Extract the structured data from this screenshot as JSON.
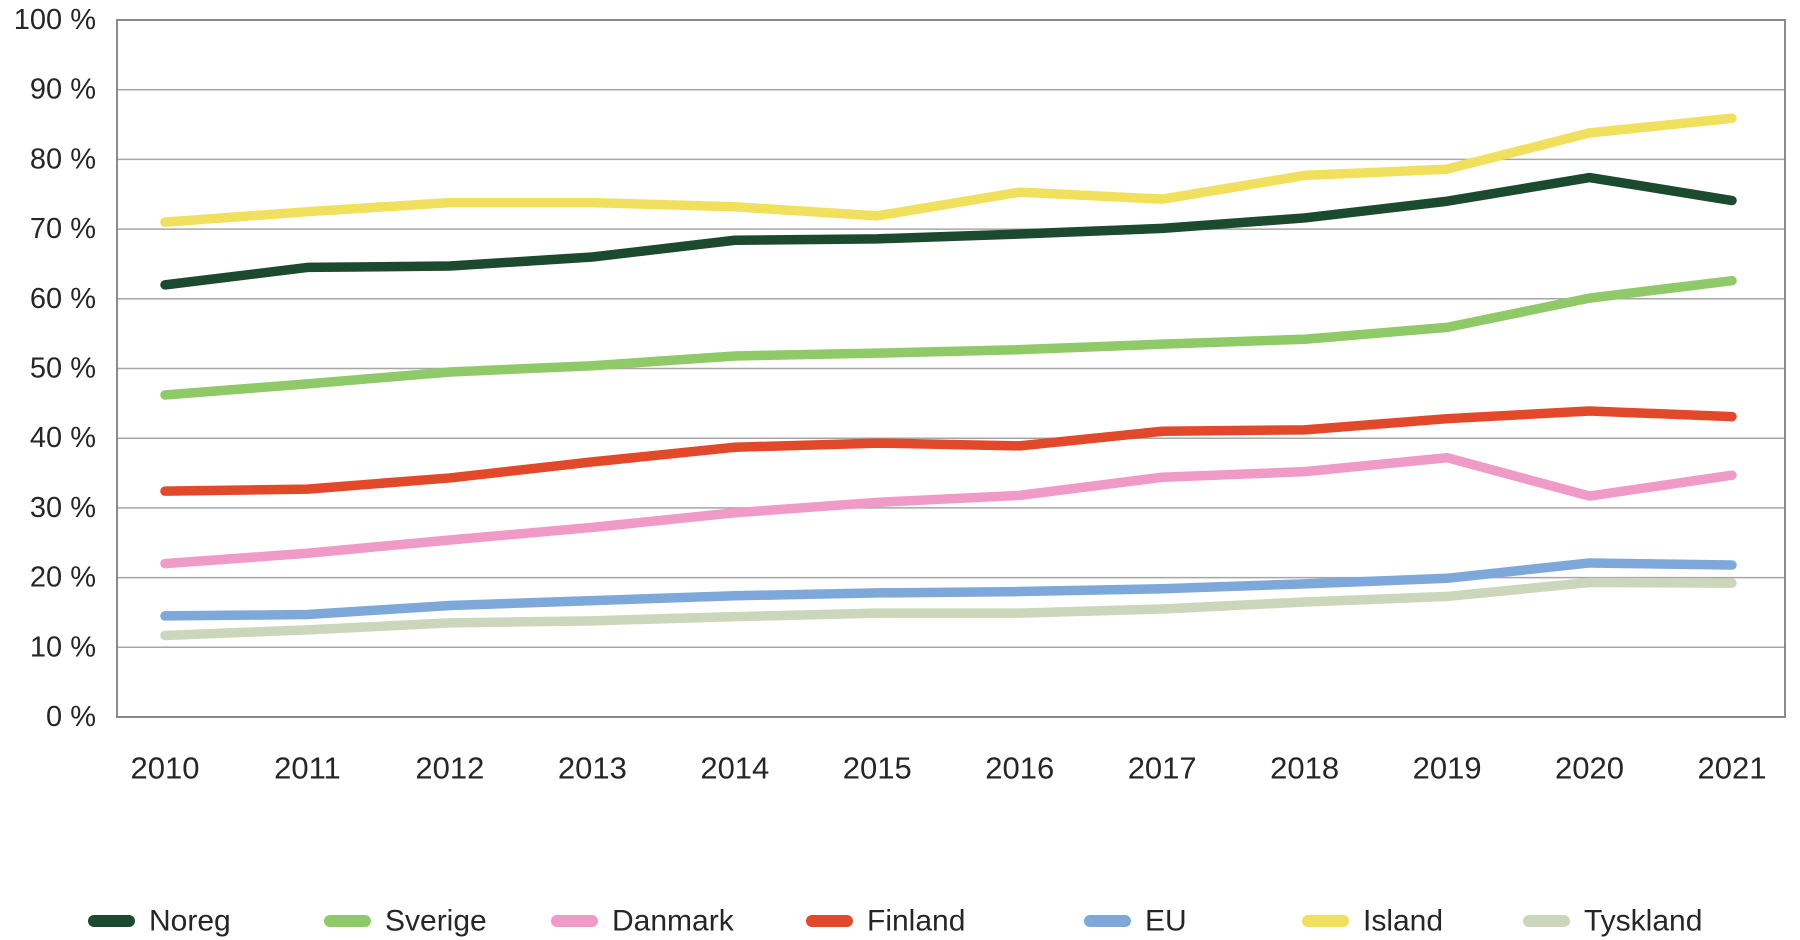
{
  "chart_data": {
    "type": "line",
    "title": "",
    "xlabel": "",
    "ylabel": "",
    "x": [
      2010,
      2011,
      2012,
      2013,
      2014,
      2015,
      2016,
      2017,
      2018,
      2019,
      2020,
      2021
    ],
    "ylim": [
      0,
      100
    ],
    "y_tick_step": 10,
    "y_tick_suffix": " %",
    "grid": true,
    "legend_position": "bottom",
    "series": [
      {
        "name": "Noreg",
        "color": "#1c4a2f",
        "values": [
          62.0,
          64.5,
          64.7,
          66.0,
          68.4,
          68.6,
          69.3,
          70.1,
          71.6,
          74.0,
          77.4,
          74.1
        ]
      },
      {
        "name": "Sverige",
        "color": "#90c967",
        "values": [
          46.2,
          47.8,
          49.5,
          50.4,
          51.8,
          52.2,
          52.7,
          53.5,
          54.2,
          55.9,
          60.1,
          62.6
        ]
      },
      {
        "name": "Danmark",
        "color": "#f09ac8",
        "values": [
          22.0,
          23.5,
          25.4,
          27.2,
          29.3,
          30.8,
          31.8,
          34.4,
          35.2,
          37.2,
          31.7,
          34.7
        ]
      },
      {
        "name": "Finland",
        "color": "#e2492a",
        "values": [
          32.4,
          32.7,
          34.3,
          36.6,
          38.7,
          39.3,
          38.9,
          41.0,
          41.2,
          42.8,
          43.9,
          43.1
        ]
      },
      {
        "name": "EU",
        "color": "#7ea8da",
        "values": [
          14.5,
          14.7,
          16.0,
          16.7,
          17.4,
          17.8,
          18.0,
          18.4,
          19.1,
          19.9,
          22.1,
          21.8
        ]
      },
      {
        "name": "Island",
        "color": "#f0e05e",
        "values": [
          71.0,
          72.5,
          73.8,
          73.8,
          73.2,
          71.9,
          75.3,
          74.3,
          77.7,
          78.6,
          83.8,
          85.9
        ]
      },
      {
        "name": "Tyskland",
        "color": "#cbd6ba",
        "values": [
          11.7,
          12.5,
          13.5,
          13.8,
          14.4,
          14.9,
          14.9,
          15.5,
          16.5,
          17.3,
          19.3,
          19.2
        ]
      }
    ]
  },
  "colors": {
    "background": "#ffffff",
    "gridline": "#a6a6a6",
    "plot_border": "#7f7f7f",
    "axis_text": "#262626"
  }
}
